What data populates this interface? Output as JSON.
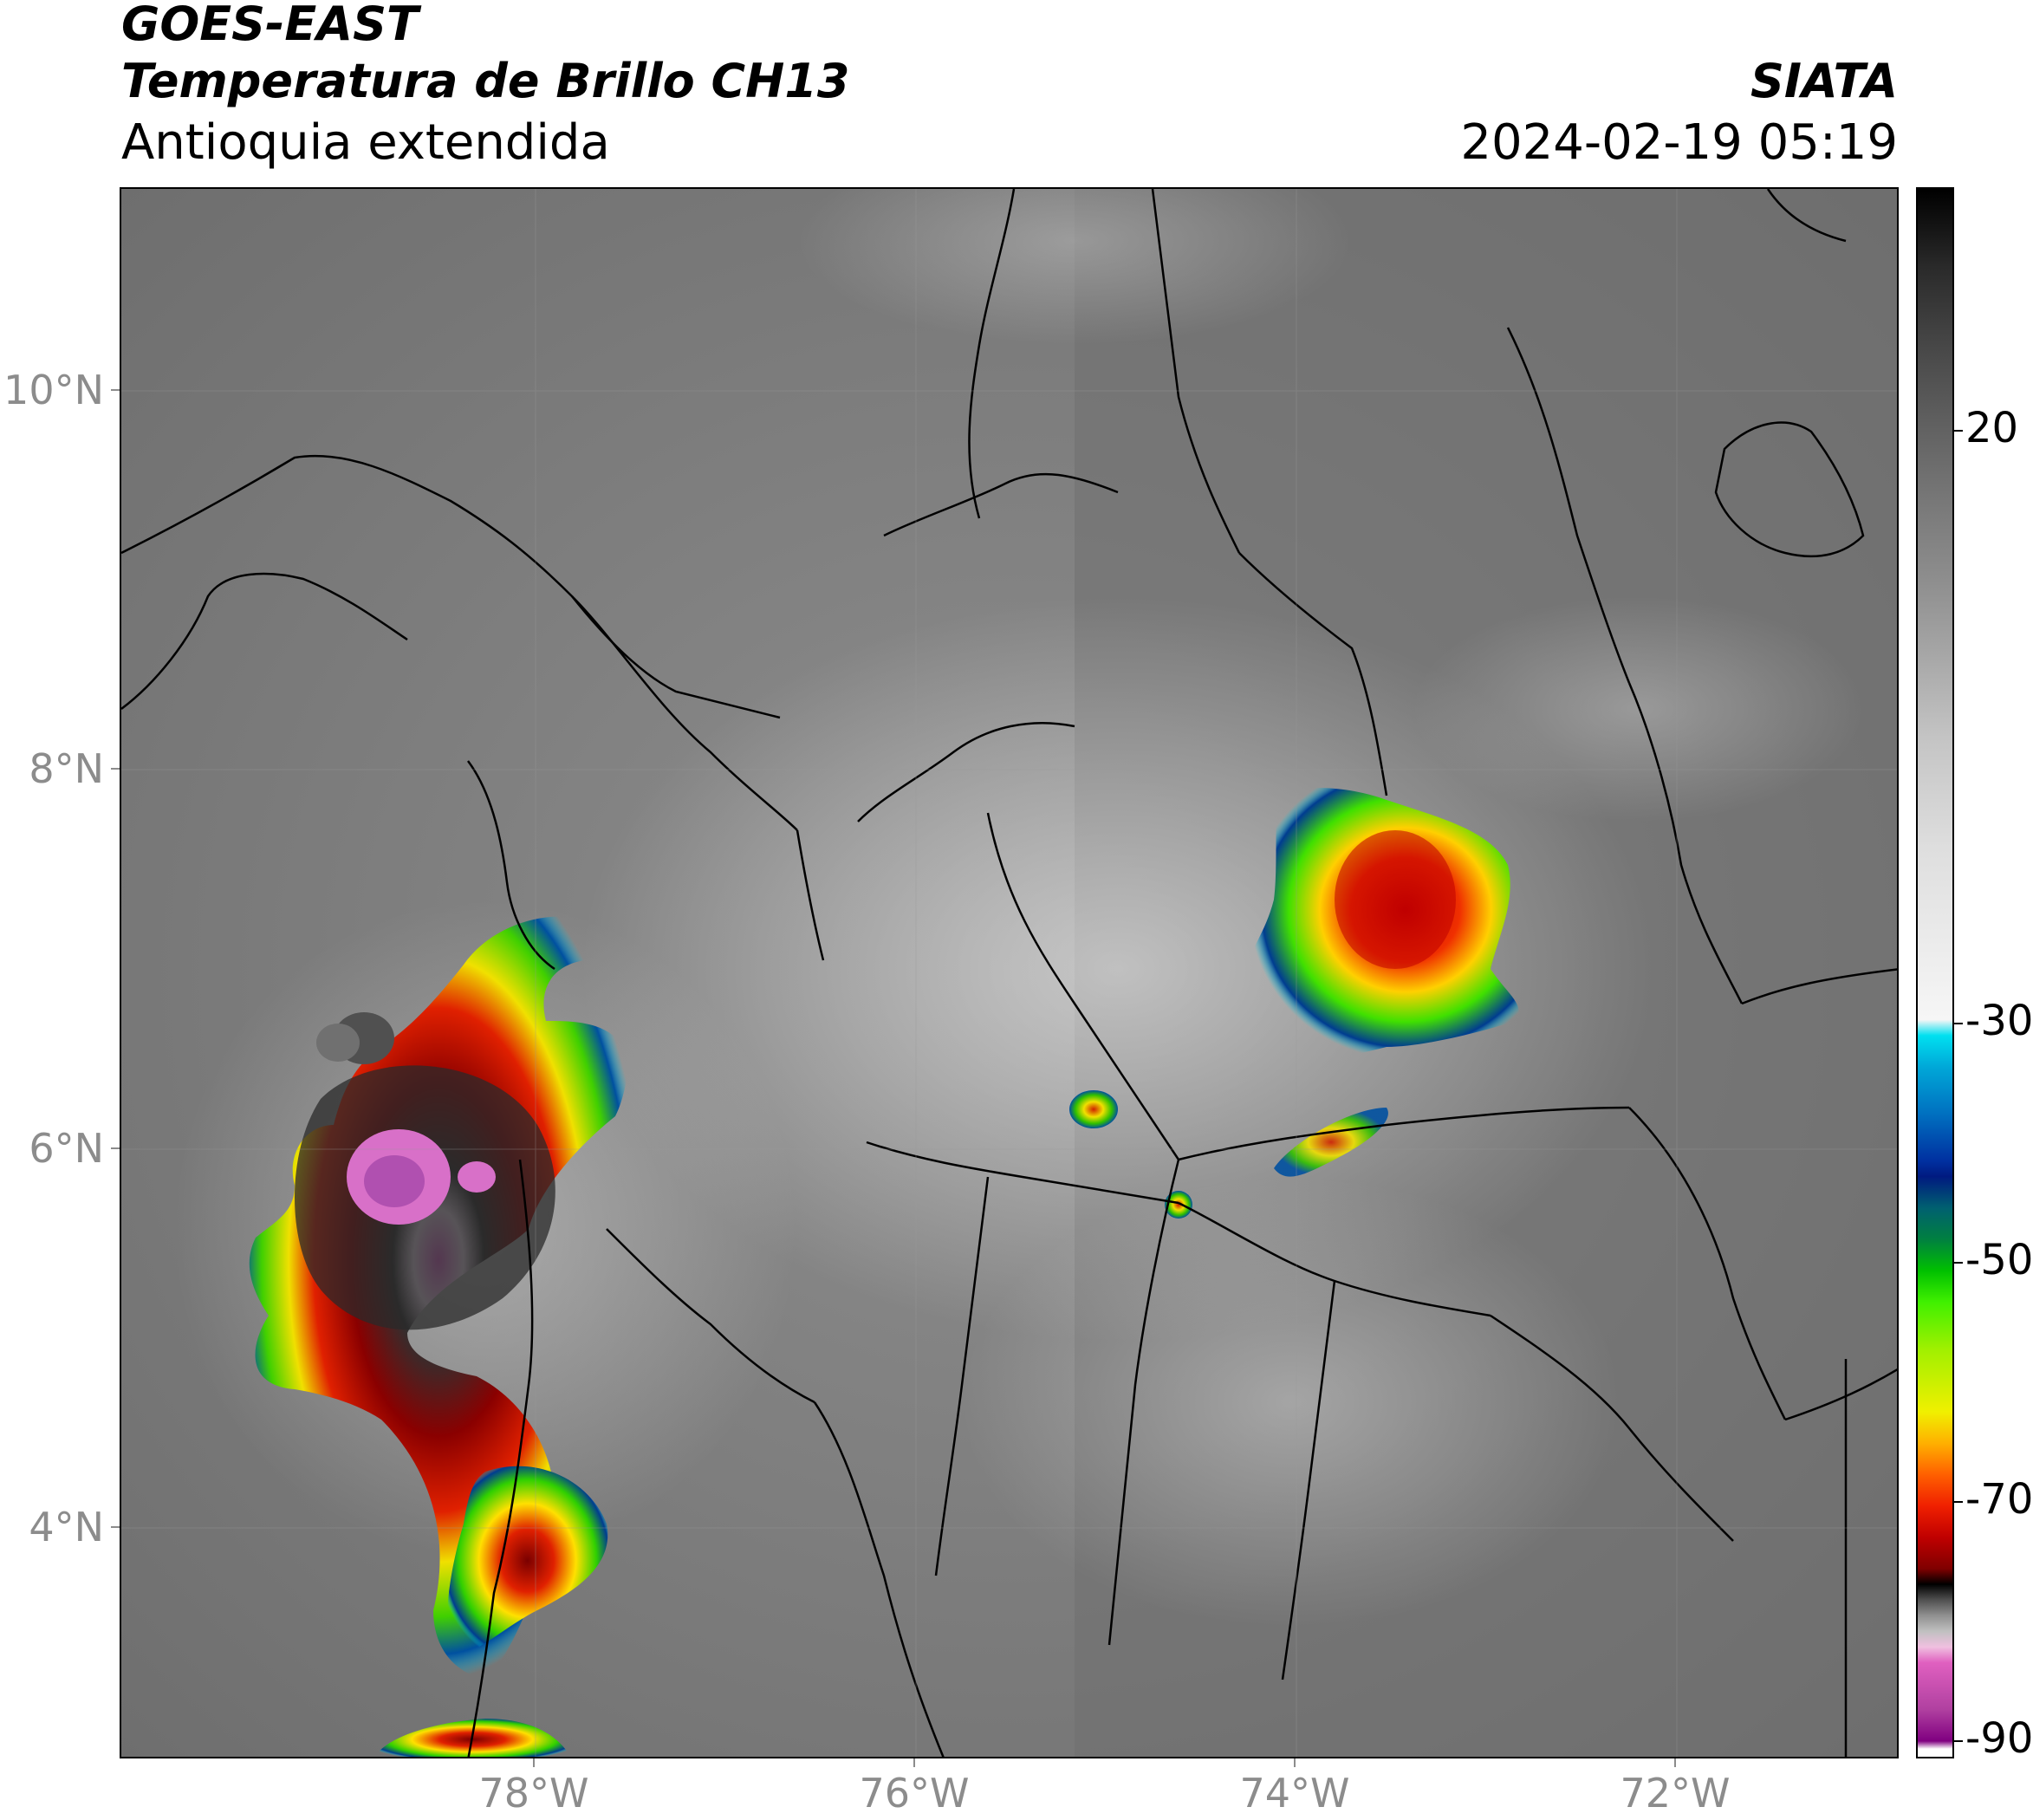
{
  "header": {
    "satellite": "GOES-EAST",
    "product": "Temperatura de Brillo CH13",
    "region": "Antioquia extendida",
    "brand": "SIATA",
    "datetime": "2024-02-19 05:19"
  },
  "map": {
    "projection": "lat-lon",
    "lat_range": [
      2.8,
      10.8
    ],
    "lon_range": [
      -80.2,
      -70.85
    ],
    "lat_labels": [
      "10°N",
      "8°N",
      "6°N",
      "4°N"
    ],
    "lon_labels": [
      "78°W",
      "76°W",
      "74°W",
      "72°W"
    ],
    "background": "grayscale brightness temperature with deep convective cells shown in color"
  },
  "colorbar": {
    "labels": [
      "20",
      "-30",
      "-50",
      "-70",
      "-90"
    ],
    "values": [
      20,
      -30,
      -50,
      -70,
      -90
    ],
    "range": [
      -90,
      27
    ]
  }
}
